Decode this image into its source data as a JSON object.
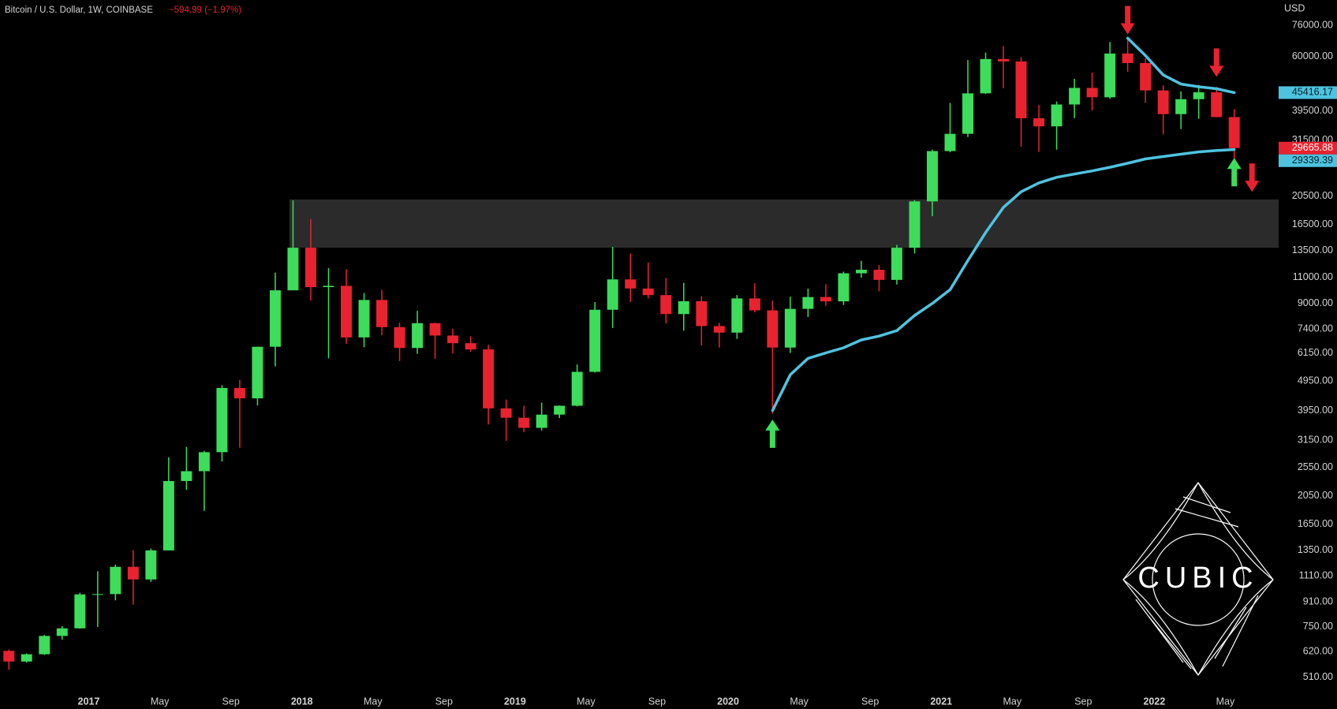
{
  "chart_data": {
    "type": "candlestick",
    "title": "Bitcoin / U.S. Dollar, 1W, COINBASE",
    "subtitle": "−594.99 (−1.97%)",
    "y_label": "USD",
    "log_scale": true,
    "grid": false,
    "up_color": "#3ddc5a",
    "down_color": "#e8232f",
    "x": [
      "2016-08",
      "2016-09",
      "2016-10",
      "2016-11",
      "2016-12",
      "2017-01",
      "2017-02",
      "2017-03",
      "2017-04",
      "2017-05",
      "2017-06",
      "2017-07",
      "2017-08",
      "2017-09",
      "2017-10",
      "2017-11",
      "2017-12",
      "2018-01",
      "2018-02",
      "2018-03",
      "2018-04",
      "2018-05",
      "2018-06",
      "2018-07",
      "2018-08",
      "2018-09",
      "2018-10",
      "2018-11",
      "2018-12",
      "2019-01",
      "2019-02",
      "2019-03",
      "2019-04",
      "2019-05",
      "2019-06",
      "2019-07",
      "2019-08",
      "2019-09",
      "2019-10",
      "2019-11",
      "2019-12",
      "2020-01",
      "2020-02",
      "2020-03",
      "2020-04",
      "2020-05",
      "2020-06",
      "2020-07",
      "2020-08",
      "2020-09",
      "2020-10",
      "2020-11",
      "2020-12",
      "2021-01",
      "2021-02",
      "2021-03",
      "2021-04",
      "2021-05",
      "2021-06",
      "2021-07",
      "2021-08",
      "2021-09",
      "2021-10",
      "2021-11",
      "2021-12",
      "2022-01",
      "2022-02",
      "2022-03",
      "2022-04",
      "2022-05"
    ],
    "open": [
      624,
      575,
      608,
      700,
      742,
      963,
      965,
      1190,
      1080,
      1350,
      2300,
      2480,
      2870,
      4700,
      4340,
      6450,
      9950,
      13800,
      10200,
      10300,
      6930,
      9240,
      7500,
      6390,
      7730,
      7030,
      6630,
      6320,
      4020,
      3740,
      3460,
      3830,
      4100,
      5320,
      8570,
      10820,
      10090,
      9590,
      8290,
      9150,
      7560,
      7190,
      9350,
      8530,
      6410,
      8630,
      9450,
      9140,
      11340,
      11650,
      10780,
      13800,
      19700,
      28990,
      33100,
      45160,
      58800,
      57700,
      37300,
      35050,
      41460,
      47100,
      43820,
      61320,
      57000,
      46200,
      38500,
      43180,
      45530,
      37640
    ],
    "high": [
      630,
      612,
      705,
      755,
      975,
      1150,
      1210,
      1350,
      1370,
      2760,
      2990,
      2900,
      4800,
      5000,
      6450,
      11400,
      19850,
      17200,
      11800,
      11700,
      9750,
      9990,
      7760,
      8500,
      7760,
      7410,
      7000,
      6550,
      4300,
      4100,
      4200,
      4110,
      5630,
      9090,
      13880,
      13200,
      12330,
      10950,
      10540,
      9510,
      7750,
      9590,
      10500,
      9190,
      9480,
      10080,
      10430,
      11480,
      12480,
      12080,
      14100,
      19900,
      29300,
      41950,
      58350,
      61780,
      64900,
      59600,
      41300,
      42400,
      50500,
      52950,
      67000,
      69000,
      59050,
      47990,
      45850,
      48190,
      47450,
      40000
    ],
    "low": [
      540,
      570,
      605,
      680,
      740,
      750,
      920,
      890,
      1060,
      1350,
      2150,
      1830,
      2670,
      2970,
      4110,
      5550,
      9950,
      9200,
      5900,
      6600,
      6430,
      7050,
      5780,
      6110,
      5880,
      6120,
      6200,
      3550,
      3130,
      3350,
      3390,
      3730,
      4080,
      5290,
      7450,
      9100,
      9350,
      7710,
      7300,
      6520,
      6410,
      6850,
      8400,
      3860,
      6150,
      8100,
      8830,
      8890,
      10960,
      9880,
      10400,
      13200,
      17580,
      28730,
      32300,
      44950,
      47000,
      30000,
      28800,
      29300,
      37330,
      39600,
      43300,
      53250,
      42000,
      32950,
      34320,
      37150,
      37600,
      26700
    ],
    "close": [
      575,
      608,
      700,
      742,
      963,
      965,
      1190,
      1080,
      1350,
      2300,
      2480,
      2870,
      4700,
      4340,
      6450,
      9950,
      13800,
      10200,
      10300,
      6930,
      9240,
      7500,
      6390,
      7730,
      7030,
      6630,
      6320,
      4020,
      3740,
      3460,
      3830,
      4100,
      5320,
      8570,
      10820,
      10090,
      9590,
      8290,
      9150,
      7560,
      7190,
      9350,
      8530,
      6410,
      8630,
      9450,
      9140,
      11340,
      11650,
      10780,
      13800,
      19700,
      28990,
      33100,
      45160,
      58800,
      57700,
      37300,
      35050,
      41460,
      47100,
      43820,
      61320,
      57000,
      46200,
      38500,
      43180,
      45530,
      37640,
      29665.88
    ],
    "series": [
      {
        "color": "#4ec3e0",
        "x": [
          "2020-03",
          "2020-04",
          "2020-05",
          "2020-06",
          "2020-07",
          "2020-08",
          "2020-09",
          "2020-10",
          "2020-11",
          "2020-12",
          "2021-01",
          "2021-02",
          "2021-03",
          "2021-04",
          "2021-05",
          "2021-06",
          "2021-07",
          "2021-08",
          "2021-09",
          "2021-10",
          "2021-11",
          "2021-12",
          "2022-01",
          "2022-02",
          "2022-03",
          "2022-04",
          "2022-05"
        ],
        "values": [
          3950,
          5200,
          5900,
          6150,
          6400,
          6800,
          7000,
          7300,
          8200,
          9000,
          10000,
          12500,
          15500,
          18800,
          21200,
          22700,
          23700,
          24300,
          24900,
          25600,
          26400,
          27300,
          27800,
          28300,
          28800,
          29100,
          29339.39
        ]
      },
      {
        "color": "#4ec3e0",
        "x": [
          "2021-11",
          "2021-12",
          "2022-01",
          "2022-02",
          "2022-03",
          "2022-04",
          "2022-05"
        ],
        "values": [
          69000,
          60400,
          52000,
          48500,
          47500,
          46800,
          45416.17
        ]
      }
    ],
    "zones": [
      {
        "start": "2017-12",
        "from": 13800,
        "to": 20000,
        "color": "#2b2b2b"
      }
    ],
    "arrows": [
      {
        "x": "2020-03",
        "y": 3690,
        "direction": "up",
        "color": "#3ddc5a"
      },
      {
        "x": "2021-11",
        "y": 71100,
        "direction": "down",
        "color": "#e8232f"
      },
      {
        "x": "2022-04",
        "y": 51300,
        "direction": "down",
        "color": "#e8232f"
      },
      {
        "x": "2022-05",
        "y": 27500,
        "direction": "up",
        "color": "#3ddc5a"
      },
      {
        "x": "2022-06",
        "y": 21200,
        "direction": "down",
        "color": "#e8232f"
      }
    ],
    "xlim": [
      "2016-08",
      "2022-08"
    ],
    "xticks": [
      {
        "value": "2017-01",
        "label": "2017"
      },
      {
        "value": "2017-05",
        "label": "May"
      },
      {
        "value": "2017-09",
        "label": "Sep"
      },
      {
        "value": "2018-01",
        "label": "2018"
      },
      {
        "value": "2018-05",
        "label": "May"
      },
      {
        "value": "2018-09",
        "label": "Sep"
      },
      {
        "value": "2019-01",
        "label": "2019"
      },
      {
        "value": "2019-05",
        "label": "May"
      },
      {
        "value": "2019-09",
        "label": "Sep"
      },
      {
        "value": "2020-01",
        "label": "2020"
      },
      {
        "value": "2020-05",
        "label": "May"
      },
      {
        "value": "2020-09",
        "label": "Sep"
      },
      {
        "value": "2021-01",
        "label": "2021"
      },
      {
        "value": "2021-05",
        "label": "May"
      },
      {
        "value": "2021-09",
        "label": "Sep"
      },
      {
        "value": "2022-01",
        "label": "2022"
      },
      {
        "value": "2022-05",
        "label": "May"
      }
    ],
    "ylim": [
      459,
      92500
    ],
    "yticks": [
      {
        "value": 76000,
        "label": "76000.00"
      },
      {
        "value": 60000,
        "label": "60000.00"
      },
      {
        "value": 39500,
        "label": "39500.00"
      },
      {
        "value": 31500,
        "label": "31500.00"
      },
      {
        "value": 20500,
        "label": "20500.00"
      },
      {
        "value": 16500,
        "label": "16500.00"
      },
      {
        "value": 13500,
        "label": "13500.00"
      },
      {
        "value": 11000,
        "label": "11000.00"
      },
      {
        "value": 9000,
        "label": "9000.00"
      },
      {
        "value": 7400,
        "label": "7400.00"
      },
      {
        "value": 6150,
        "label": "6150.00"
      },
      {
        "value": 4950,
        "label": "4950.00"
      },
      {
        "value": 3950,
        "label": "3950.00"
      },
      {
        "value": 3150,
        "label": "3150.00"
      },
      {
        "value": 2550,
        "label": "2550.00"
      },
      {
        "value": 2050,
        "label": "2050.00"
      },
      {
        "value": 1650,
        "label": "1650.00"
      },
      {
        "value": 1350,
        "label": "1350.00"
      },
      {
        "value": 1110,
        "label": "1110.00"
      },
      {
        "value": 910,
        "label": "910.00"
      },
      {
        "value": 750,
        "label": "750.00"
      },
      {
        "value": 620,
        "label": "620.00"
      },
      {
        "value": 510,
        "label": "510.00"
      }
    ],
    "watermark": "CUBIC"
  }
}
